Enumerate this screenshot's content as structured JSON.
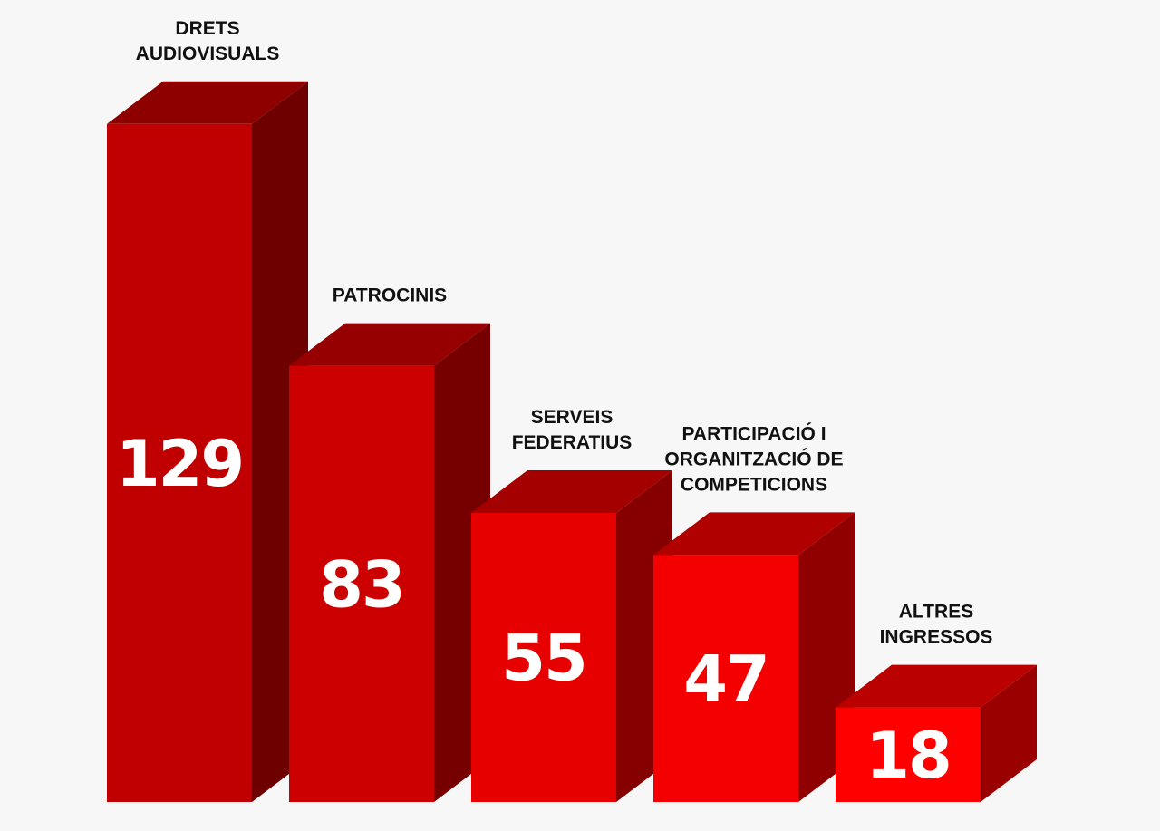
{
  "chart_data": {
    "type": "bar",
    "categories": [
      "DRETS AUDIOVISUALS",
      "PATROCINIS",
      "SERVEIS FEDERATIUS",
      "PARTICIPACIÓ I ORGANITZACIÓ DE COMPETICIONS",
      "ALTRES INGRESSOS"
    ],
    "category_label_lines": [
      [
        "DRETS",
        "AUDIOVISUALS"
      ],
      [
        "PATROCINIS"
      ],
      [
        "SERVEIS",
        "FEDERATIUS"
      ],
      [
        "PARTICIPACIÓ I",
        "ORGANITZACIÓ DE",
        "COMPETICIONS"
      ],
      [
        "ALTRES",
        "INGRESSOS"
      ]
    ],
    "values": [
      129,
      83,
      55,
      47,
      18
    ],
    "data_labels": [
      "129",
      "83",
      "55",
      "47",
      "18"
    ],
    "style": "3d",
    "colors": {
      "front": [
        "#c00000",
        "#cc0000",
        "#e60000",
        "#f40000",
        "#ff0000"
      ],
      "top": [
        "#8e0000",
        "#960000",
        "#a50000",
        "#b00000",
        "#bb0000"
      ],
      "side": [
        "#6e0000",
        "#760000",
        "#860000",
        "#900000",
        "#9a0000"
      ]
    }
  }
}
